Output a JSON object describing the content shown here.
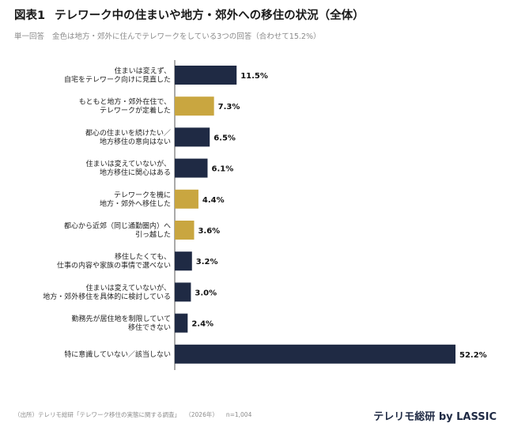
{
  "header": {
    "fig_number": "図表1",
    "title": "テレワーク中の住まいや地方・郊外への移住の状況（全体）",
    "answer_type": "単一回答",
    "note": "金色は地方・郊外に住んでテレワークをしている3つの回答（合わせて15.2%）"
  },
  "footer": {
    "source": "（出所）テレリモ総研「テレワーク移住の実態に関する調査」",
    "year": "（2026年）",
    "n": "n=1,004",
    "brand": "テレリモ総研 by LASSIC"
  },
  "colors": {
    "navy": "#1f2a44",
    "gold": "#c9a640"
  },
  "chart_data": {
    "type": "bar",
    "orientation": "horizontal",
    "unit": "%",
    "xlim": [
      0,
      55
    ],
    "grid": false,
    "legend": "none",
    "categories": [
      [
        "住まいは変えず、",
        "自宅をテレワーク向けに見直した"
      ],
      [
        "もともと地方・郊外在住で、",
        "テレワークが定着した"
      ],
      [
        "都心の住まいを続けたい／",
        "地方移住の意向はない"
      ],
      [
        "住まいは変えていないが、",
        "地方移住に関心はある"
      ],
      [
        "テレワークを機に",
        "地方・郊外へ移住した"
      ],
      [
        "都心から近郊（同じ通勤圏内）へ",
        "引っ越した"
      ],
      [
        "移住したくても、",
        "仕事の内容や家族の事情で選べない"
      ],
      [
        "住まいは変えていないが、",
        "地方・郊外移住を具体的に検討している"
      ],
      [
        "勤務先が居住地を制限していて",
        "移住できない"
      ],
      [
        "特に意識していない／該当しない"
      ]
    ],
    "values": [
      11.5,
      7.3,
      6.5,
      6.1,
      4.4,
      3.6,
      3.2,
      3.0,
      2.4,
      52.2
    ],
    "value_labels": [
      "11.5%",
      "7.3%",
      "6.5%",
      "6.1%",
      "4.4%",
      "3.6%",
      "3.2%",
      "3.0%",
      "2.4%",
      "52.2%"
    ],
    "highlight": [
      false,
      true,
      false,
      false,
      true,
      true,
      false,
      false,
      false,
      false
    ]
  }
}
